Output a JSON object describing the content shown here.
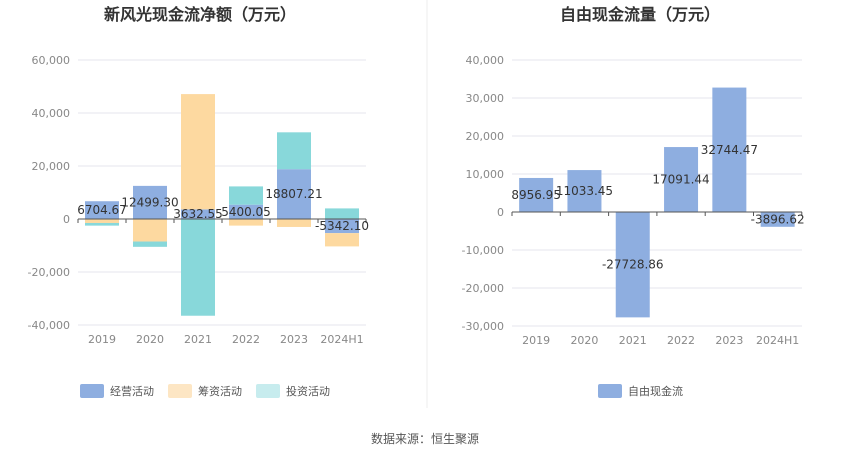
{
  "source_note": "数据来源：恒生聚源",
  "chart_data": [
    {
      "type": "bar",
      "stacked": true,
      "title": "新风光现金流净额（万元）",
      "categories": [
        "2019",
        "2020",
        "2021",
        "2022",
        "2023",
        "2024H1"
      ],
      "ylim": [
        -40000,
        60000
      ],
      "yticks": [
        -40000,
        -20000,
        0,
        20000,
        40000,
        60000
      ],
      "ytick_labels": [
        "-40,000",
        "-20,000",
        "0",
        "20,000",
        "40,000",
        "60,000"
      ],
      "series": [
        {
          "name": "经营活动",
          "color": "#8eaee0",
          "values": [
            6704.67,
            12499.3,
            3632.55,
            5400.05,
            18807.21,
            -5342.1
          ]
        },
        {
          "name": "筹资活动",
          "color": "#fdd9a0",
          "values": [
            -1500,
            -8500,
            43500,
            -2500,
            -3000,
            -5000
          ]
        },
        {
          "name": "投资活动",
          "color": "#88d8da",
          "values": [
            -1000,
            -2000,
            -36500,
            6900,
            13900,
            4000
          ]
        }
      ],
      "data_labels": [
        "6704.67",
        "12499.30",
        "3632.55",
        "5400.05",
        "18807.21",
        "-5342.10"
      ],
      "legend": [
        "经营活动",
        "筹资活动",
        "投资活动"
      ]
    },
    {
      "type": "bar",
      "stacked": false,
      "title": "自由现金流量（万元）",
      "categories": [
        "2019",
        "2020",
        "2021",
        "2022",
        "2023",
        "2024H1"
      ],
      "ylim": [
        -30000,
        40000
      ],
      "yticks": [
        -30000,
        -20000,
        -10000,
        0,
        10000,
        20000,
        30000,
        40000
      ],
      "ytick_labels": [
        "-30,000",
        "-20,000",
        "-10,000",
        "0",
        "10,000",
        "20,000",
        "30,000",
        "40,000"
      ],
      "series": [
        {
          "name": "自由现金流",
          "color": "#8eaee0",
          "values": [
            8956.95,
            11033.45,
            -27728.86,
            17091.44,
            32744.47,
            -3896.62
          ]
        }
      ],
      "data_labels": [
        "8956.95",
        "11033.45",
        "-27728.86",
        "17091.44",
        "32744.47",
        "-3896.62"
      ],
      "legend": [
        "自由现金流"
      ]
    }
  ]
}
